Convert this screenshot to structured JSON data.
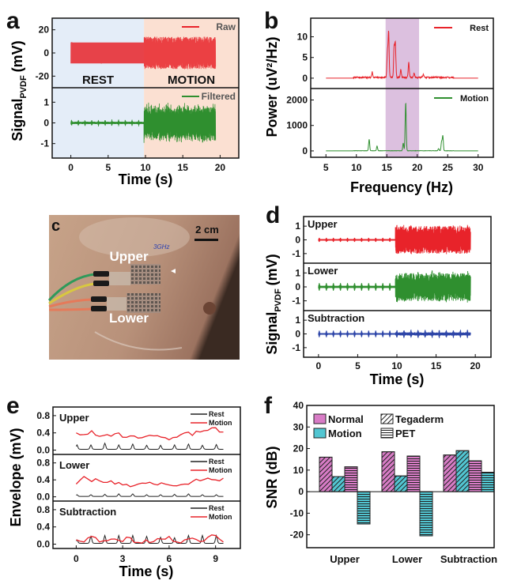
{
  "colors": {
    "red": "#e8232a",
    "green": "#2f8f2f",
    "blue": "#2d45a8",
    "black": "#222222",
    "rest_bg": "#e4edf8",
    "motion_bg": "#fbe0d2",
    "band": "#dcc0df",
    "pink": "#d87cc6",
    "cyan": "#52c6d2"
  },
  "panel_labels": {
    "a": "a",
    "b": "b",
    "c": "c",
    "d": "d",
    "e": "e",
    "f": "f"
  },
  "photo": {
    "upper_label": "Upper",
    "lower_label": "Lower",
    "scale_label": "2 cm",
    "handwriting": "3GHz"
  },
  "chart_data": [
    {
      "panel": "a",
      "type": "line",
      "xlabel": "Time (s)",
      "ylabel": "Signal",
      "ylabel_sub": "PVDF",
      "ylabel_unit": "(mV)",
      "xlim": [
        -2.5,
        22.5
      ],
      "xticks": [
        0,
        5,
        10,
        15,
        20
      ],
      "grid": false,
      "regions": [
        {
          "label": "REST",
          "range": [
            -2.5,
            9.8
          ]
        },
        {
          "label": "MOTION",
          "range": [
            9.8,
            22.5
          ]
        }
      ],
      "time_range": [
        0,
        19.4
      ],
      "subplots": [
        {
          "legend": "Raw",
          "legend_position": "top-right",
          "ylim": [
            -30,
            30
          ],
          "yticks": [
            -20,
            0,
            20
          ],
          "rest_amplitude": 9,
          "motion_amplitude": 14
        },
        {
          "legend": "Filtered",
          "legend_position": "top-right",
          "ylim": [
            -1.7,
            1.7
          ],
          "yticks": [
            -1,
            0,
            1
          ],
          "rest_amplitude": 0.06,
          "motion_amplitude": 1.0
        }
      ]
    },
    {
      "panel": "b",
      "type": "line",
      "xlabel": "Frequency (Hz)",
      "ylabel": "Power (uV²/Hz)",
      "xlim": [
        2.5,
        32.5
      ],
      "xticks": [
        5,
        10,
        15,
        20,
        25,
        30
      ],
      "shaded_band": [
        14.8,
        20.3
      ],
      "freq_range": [
        5,
        30
      ],
      "subplots": [
        {
          "legend": "Rest",
          "legend_position": "top-right",
          "ylim": [
            -2.5,
            14.5
          ],
          "yticks": [
            0,
            5,
            10
          ],
          "peaks": [
            [
              12.6,
              1.3
            ],
            [
              15.1,
              6
            ],
            [
              15.3,
              11
            ],
            [
              16.2,
              7.5
            ],
            [
              16.4,
              8.3
            ],
            [
              17.3,
              2
            ],
            [
              18.6,
              3.7
            ],
            [
              19.5,
              1
            ],
            [
              21,
              0.7
            ]
          ]
        },
        {
          "legend": "Motion",
          "legend_position": "top-right",
          "ylim": [
            -250,
            2450
          ],
          "yticks": [
            0,
            1000,
            2000
          ],
          "peaks": [
            [
              12.1,
              450
            ],
            [
              13.4,
              180
            ],
            [
              17.7,
              300
            ],
            [
              18.1,
              1900
            ],
            [
              23.5,
              80
            ],
            [
              24.0,
              350
            ],
            [
              24.2,
              580
            ]
          ]
        }
      ]
    },
    {
      "panel": "d",
      "type": "line",
      "xlabel": "Time (s)",
      "ylabel": "Signal",
      "ylabel_sub": "PVDF",
      "ylabel_unit": "(mV)",
      "xlim": [
        -1.9,
        22
      ],
      "xticks": [
        0,
        5,
        10,
        15,
        20
      ],
      "time_range": [
        0,
        19.4
      ],
      "motion_start": 9.8,
      "subplots": [
        {
          "label": "Upper",
          "color_key": "red",
          "ylim": [
            -1.7,
            1.7
          ],
          "yticks": [
            -1,
            0,
            1
          ],
          "rest_amplitude": 0.05,
          "beat_amplitude": 0.1,
          "motion_amplitude": 1.0
        },
        {
          "label": "Lower",
          "color_key": "green",
          "ylim": [
            -1.7,
            1.7
          ],
          "yticks": [
            -1,
            0,
            1
          ],
          "rest_amplitude": 0.08,
          "beat_amplitude": 0.2,
          "motion_amplitude": 1.0
        },
        {
          "label": "Subtraction",
          "color_key": "blue",
          "ylim": [
            -1.7,
            1.7
          ],
          "yticks": [
            -1,
            0,
            1
          ],
          "rest_amplitude": 0.05,
          "beat_amplitude": 0.2,
          "motion_amplitude": 0.12
        }
      ]
    },
    {
      "panel": "e",
      "type": "line",
      "xlabel": "Time (s)",
      "ylabel": "Envelope (mV)",
      "xlim": [
        -1.5,
        10.6
      ],
      "xticks": [
        0,
        3,
        6,
        9
      ],
      "ylim": [
        -0.1,
        1.0
      ],
      "yticks": [
        "0.0",
        "0.4",
        "0.8"
      ],
      "t_step": 0.5,
      "subplots": [
        {
          "label": "Upper",
          "legend": [
            "Rest",
            "Motion"
          ],
          "motion": [
            0.4,
            0.36,
            0.45,
            0.32,
            0.36,
            0.38,
            0.3,
            0.33,
            0.28,
            0.32,
            0.33,
            0.3,
            0.24,
            0.3,
            0.4,
            0.34,
            0.42,
            0.46,
            0.52,
            0.42
          ],
          "rest_baseline": 0.02,
          "rest_peak_times": [
            0,
            0.9,
            1.8,
            2.7,
            3.6,
            4.5,
            5.4,
            6.3,
            7.2,
            8.1,
            9.0
          ],
          "rest_peak_heights": [
            0.12,
            0.12,
            0.16,
            0.12,
            0.14,
            0.11,
            0.11,
            0.12,
            0.14,
            0.11,
            0.13
          ]
        },
        {
          "label": "Lower",
          "legend": [
            "Rest",
            "Motion"
          ],
          "motion": [
            0.3,
            0.48,
            0.36,
            0.38,
            0.34,
            0.3,
            0.28,
            0.24,
            0.3,
            0.32,
            0.3,
            0.33,
            0.28,
            0.26,
            0.3,
            0.36,
            0.38,
            0.44,
            0.4,
            0.44
          ],
          "rest_baseline": 0.01,
          "rest_peak_times": [
            0,
            0.9,
            1.8,
            2.7,
            3.6,
            4.5,
            5.4,
            6.3,
            7.2,
            8.1,
            9.0
          ],
          "rest_peak_heights": [
            0.05,
            0.05,
            0.06,
            0.07,
            0.07,
            0.05,
            0.05,
            0.06,
            0.07,
            0.05,
            0.05
          ]
        },
        {
          "label": "Subtraction",
          "legend": [
            "Rest",
            "Motion"
          ],
          "motion": [
            0.1,
            0.05,
            0.18,
            0.05,
            0.08,
            0.12,
            0.06,
            0.15,
            0.04,
            0.1,
            0.06,
            0.12,
            0.18,
            0.05,
            0.1,
            0.14,
            0.06,
            0.16,
            0.2,
            0.05
          ],
          "rest_baseline": 0.02,
          "rest_peak_times": [
            0,
            0.9,
            1.8,
            2.7,
            3.6,
            4.5,
            5.4,
            6.3,
            7.2,
            8.1,
            9.0
          ],
          "rest_peak_heights": [
            0.1,
            0.18,
            0.2,
            0.2,
            0.2,
            0.18,
            0.16,
            0.15,
            0.2,
            0.2,
            0.2
          ]
        }
      ]
    },
    {
      "panel": "f",
      "type": "bar",
      "ylabel": "SNR (dB)",
      "ylim": [
        -26,
        40
      ],
      "yticks": [
        -20,
        -10,
        0,
        10,
        20,
        30,
        40
      ],
      "categories": [
        "Upper",
        "Lower",
        "Subtraction"
      ],
      "legend": {
        "position": "top-left",
        "items": [
          "Normal",
          "Motion",
          "Tegaderm",
          "PET"
        ]
      },
      "series": [
        {
          "name": "Normal, Tegaderm",
          "color_key": "pink",
          "hatch": "diagonal",
          "values": [
            16,
            18.5,
            17
          ]
        },
        {
          "name": "Motion, Tegaderm",
          "color_key": "cyan",
          "hatch": "diagonal",
          "values": [
            7,
            7.3,
            19
          ]
        },
        {
          "name": "Normal, PET",
          "color_key": "pink",
          "hatch": "horizontal",
          "values": [
            11.5,
            16.5,
            14.3
          ]
        },
        {
          "name": "Motion, PET",
          "color_key": "cyan",
          "hatch": "horizontal",
          "values": [
            -15,
            -20.5,
            9
          ]
        }
      ]
    }
  ]
}
